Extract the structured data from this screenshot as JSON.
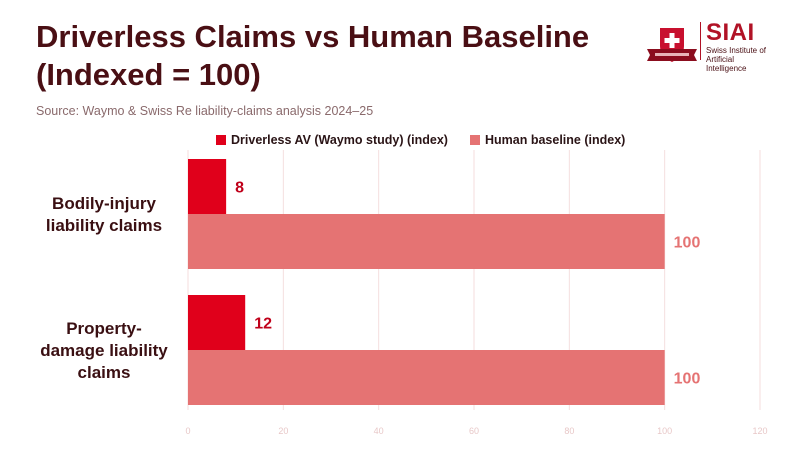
{
  "header": {
    "title": "Driverless Claims vs Human Baseline (Indexed = 100)",
    "source": "Source: Waymo & Swiss Re liability-claims analysis 2024–25"
  },
  "logo": {
    "name": "SIAI",
    "sub_line1": "Swiss Institute of",
    "sub_line2": "Artificial Intelligence"
  },
  "colors": {
    "title": "#4a0f14",
    "driverless": "#e0001b",
    "human": "#e57373",
    "grid": "#f4dede",
    "tick": "#e8c8c8"
  },
  "chart_data": {
    "type": "bar",
    "orientation": "horizontal",
    "categories": [
      "Bodily-injury liability claims",
      "Property-damage liability claims"
    ],
    "series": [
      {
        "name": "Driverless AV (Waymo study) (index)",
        "values": [
          8,
          12
        ]
      },
      {
        "name": "Human baseline (index)",
        "values": [
          100,
          100
        ]
      }
    ],
    "xlim": [
      0,
      120
    ],
    "xticks": [
      0,
      20,
      40,
      60,
      80,
      100,
      120
    ],
    "grid": true,
    "legend_position": "top"
  }
}
